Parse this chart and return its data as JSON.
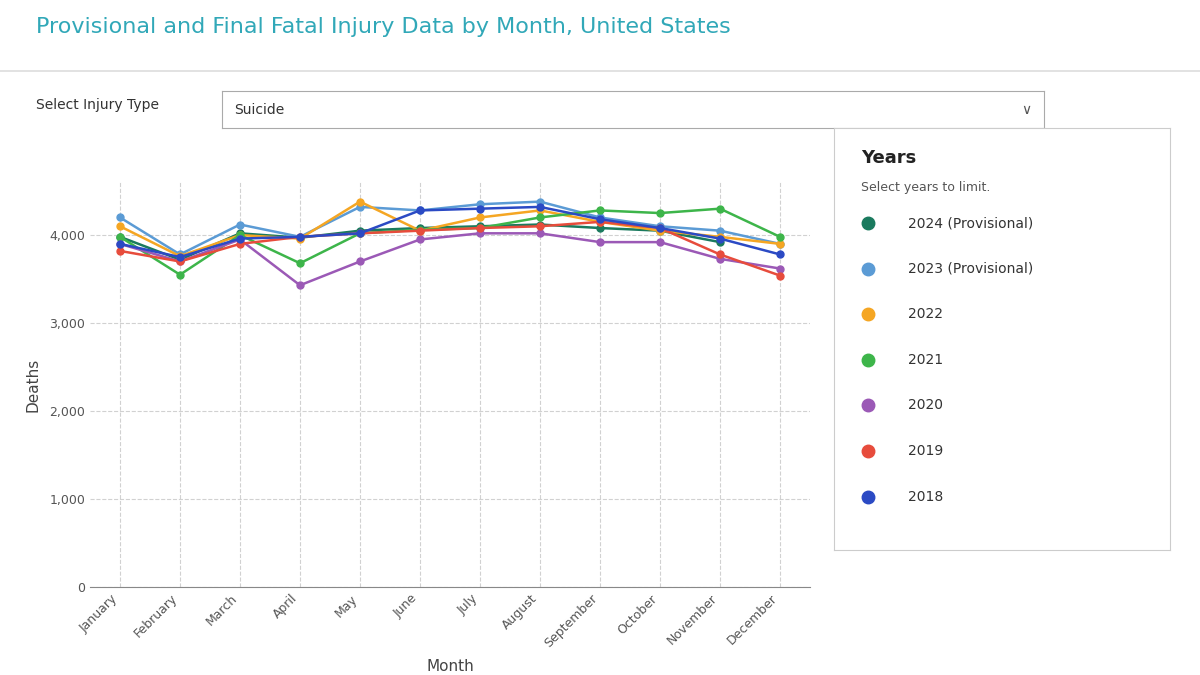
{
  "title": "Provisional and Final Fatal Injury Data by Month, United States",
  "subtitle_label": "Select Injury Type",
  "subtitle_value": "Suicide",
  "xlabel": "Month",
  "ylabel": "Deaths",
  "months": [
    "January",
    "February",
    "March",
    "April",
    "May",
    "June",
    "July",
    "August",
    "September",
    "October",
    "November",
    "December"
  ],
  "legend_title": "Years",
  "legend_subtitle": "Select years to limit.",
  "series": [
    {
      "label": "2024 (Provisional)",
      "color": "#1a7a5e",
      "data": [
        3980,
        3720,
        4020,
        3970,
        4050,
        4080,
        4100,
        4120,
        4080,
        4050,
        3920,
        null
      ]
    },
    {
      "label": "2023 (Provisional)",
      "color": "#5b9bd5",
      "data": [
        4200,
        3780,
        4120,
        3980,
        4320,
        4280,
        4350,
        4380,
        4200,
        4100,
        4050,
        3900
      ]
    },
    {
      "label": "2022",
      "color": "#f5a623",
      "data": [
        4100,
        3760,
        4000,
        3960,
        4380,
        4050,
        4200,
        4280,
        4150,
        4050,
        3980,
        3900
      ]
    },
    {
      "label": "2021",
      "color": "#3db54a",
      "data": [
        3980,
        3550,
        4000,
        3680,
        4020,
        4060,
        4080,
        4200,
        4280,
        4250,
        4300,
        3980
      ]
    },
    {
      "label": "2020",
      "color": "#9b59b6",
      "data": [
        3900,
        3700,
        3950,
        3430,
        3700,
        3950,
        4020,
        4020,
        3920,
        3920,
        3730,
        3620
      ]
    },
    {
      "label": "2019",
      "color": "#e74c3c",
      "data": [
        3820,
        3700,
        3900,
        3980,
        4020,
        4050,
        4080,
        4100,
        4150,
        4080,
        3780,
        3540
      ]
    },
    {
      "label": "2018",
      "color": "#2b4ac4",
      "data": [
        3900,
        3750,
        3960,
        3980,
        4020,
        4280,
        4300,
        4320,
        4180,
        4080,
        3960,
        3780
      ]
    }
  ],
  "ylim": [
    0,
    4600
  ],
  "yticks": [
    0,
    1000,
    2000,
    3000,
    4000
  ],
  "background_color": "#ffffff",
  "plot_bg_color": "#ffffff",
  "grid_color": "#cccccc",
  "title_color": "#31a8b8",
  "axis_label_color": "#444444",
  "tick_color": "#555555",
  "legend_box_color": "#ffffff",
  "legend_box_border": "#cccccc"
}
